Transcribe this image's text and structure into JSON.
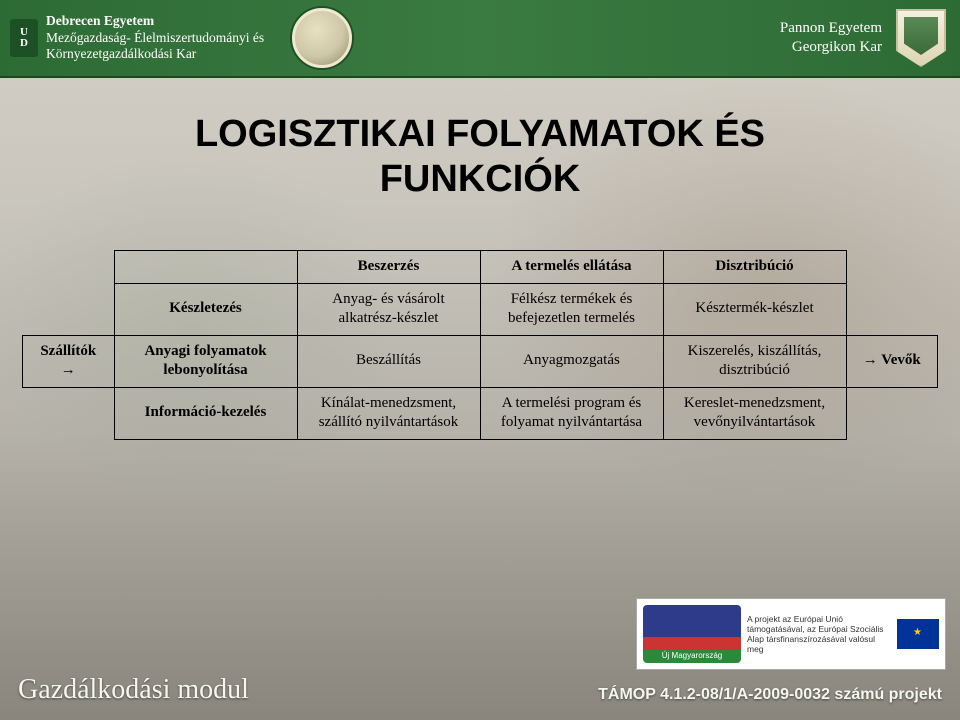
{
  "header": {
    "left_university": "Debrecen Egyetem",
    "left_faculty_line1": "Mezőgazdaság- Élelmiszertudományi és",
    "left_faculty_line2": "Környezetgazdálkodási Kar",
    "right_university": "Pannon Egyetem",
    "right_faculty": "Georgikon Kar",
    "ud_logo_top": "U",
    "ud_logo_bottom": "D",
    "bg_gradient_start": "#2d6b34",
    "bg_gradient_end": "#2d6b34"
  },
  "title": {
    "line1": "LOGISZTIKAI FOLYAMATOK ÉS",
    "line2": "FUNKCIÓK",
    "font_family": "Arial",
    "font_size_pt": 30,
    "color": "#000000"
  },
  "table": {
    "type": "table",
    "font_size_pt": 12,
    "border_color": "#000000",
    "cells": {
      "left_label": "Szállítók →",
      "right_label": "→ Vevők",
      "col1_r1": "",
      "col1_r2": "Készletezés",
      "col1_r3": "Anyagi folyamatok lebonyolítása",
      "col1_r4": "Információ-kezelés",
      "col2_r1": "Beszerzés",
      "col2_r2": "Anyag- és vásárolt alkatrész-készlet",
      "col2_r3": "Beszállítás",
      "col2_r4": "Kínálat-menedzsment, szállító nyilvántartások",
      "col3_r1": "A termelés ellátása",
      "col3_r2": "Félkész termékek és befejezetlen termelés",
      "col3_r3": "Anyagmozgatás",
      "col3_r4": "A termelési program és folyamat nyilvántartása",
      "col4_r1": "Disztribúció",
      "col4_r2": "Késztermék-készlet",
      "col4_r3": "Kiszerelés, kiszállítás, disztribúció",
      "col4_r4": "Kereslet-menedzsment, vevőnyilvántartások"
    }
  },
  "footer": {
    "left": "Gazdálkodási modul",
    "right": "TÁMOP 4.1.2-08/1/A-2009-0032 számú projekt",
    "sponsor_text": "A projekt az Európai Unió támogatásával, az Európai Szociális Alap társfinanszírozásával valósul meg"
  },
  "colors": {
    "page_bg_top": "#d5d0c6",
    "page_bg_bottom": "#9e9b92",
    "header_green": "#2d6b34",
    "text": "#000000",
    "footer_text": "#f5f7ee"
  }
}
